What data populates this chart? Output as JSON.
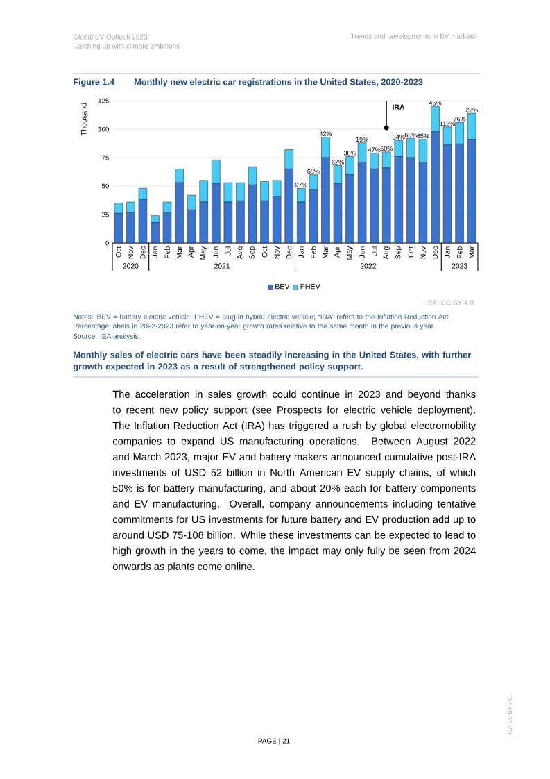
{
  "chart_data": {
    "type": "bar",
    "stacked": true,
    "title": "Monthly new electric car registrations in the United States, 2020-2023",
    "ylabel": "Thousand",
    "categories": [
      "Oct",
      "Nov",
      "Dec",
      "Jan",
      "Feb",
      "Mar",
      "Apr",
      "May",
      "Jun",
      "Jul",
      "Aug",
      "Sep",
      "Oct",
      "Nov",
      "Dec",
      "Jan",
      "Feb",
      "Mar",
      "Apr",
      "May",
      "Jun",
      "Jul",
      "Aug",
      "Sep",
      "Oct",
      "Nov",
      "Dec",
      "Jan",
      "Feb",
      "Mar"
    ],
    "series": [
      {
        "name": "BEV",
        "color": "#3b74cf",
        "values": [
          26,
          27,
          38,
          18,
          27,
          53,
          29,
          36,
          52,
          36,
          37,
          51,
          37,
          41,
          65,
          36,
          47,
          75,
          52,
          60,
          71,
          65,
          66,
          76,
          75,
          71,
          98,
          86,
          87,
          91
        ]
      },
      {
        "name": "PHEV",
        "color": "#45cbf5",
        "values": [
          9,
          9,
          10,
          6,
          9,
          12,
          13,
          19,
          21,
          17,
          16,
          16,
          17,
          14,
          17,
          12,
          13,
          18,
          16,
          16,
          17,
          14,
          14,
          14,
          17,
          20,
          22,
          16,
          19,
          23
        ]
      }
    ],
    "ylim": [
      0,
      125
    ],
    "yticks": [
      0,
      25,
      50,
      75,
      100,
      125
    ],
    "grid": "y",
    "legend": "bottom",
    "annotations": [
      "Global EV Outlook 2023",
      "Catching up with climate ambitions",
      "Trends and developments in EV markets",
      "Figure 1.4",
      "IEA. CC BY 4.0.",
      "Notes: BEV = battery electric vehicle; PHEV = plug-in hybrid electric vehicle; “IRA” refers to the Inflation Reduction Act. Percentage labels in 2022-2023 refer to year-on-year growth rates relative to the same month in the previous year.",
      "Source: IEA analysis.",
      "Monthly sales of electric cars have been steadily increasing in the United States, with further growth expected in 2023 as a result of strengthened policy support.",
      "The acceleration in sales growth could continue in 2023 and beyond thanks to recent new policy support (see Prospects for electric vehicle deployment). The Inflation Reduction Act (IRA) has triggered a rush by global electromobility companies to expand US manufacturing operations. Between August 2022 and March 2023, major EV and battery makers announced cumulative post-IRA investments of USD 52 billion in North American EV supply chains, of which 50% is for battery manufacturing, and about 20% each for battery components and EV manufacturing. Overall, company announcements including tentative commitments for US investments for future battery and EV production add up to around USD 75-108 billion. While these investments can be expected to lead to high growth in the years to come, the impact may only fully be seen from 2024 onwards as plants come online.",
      "PAGE | 21",
      "IEA CC BY 4.0.",
      "2020",
      "2021",
      "2022",
      "2023",
      "IRA",
      "97%",
      "68%",
      "42%",
      "62%",
      "38%",
      "19%",
      "47%",
      "50%",
      "34%",
      "69%",
      "65%",
      "45%",
      "112%",
      "76%",
      "22%"
    ]
  }
}
